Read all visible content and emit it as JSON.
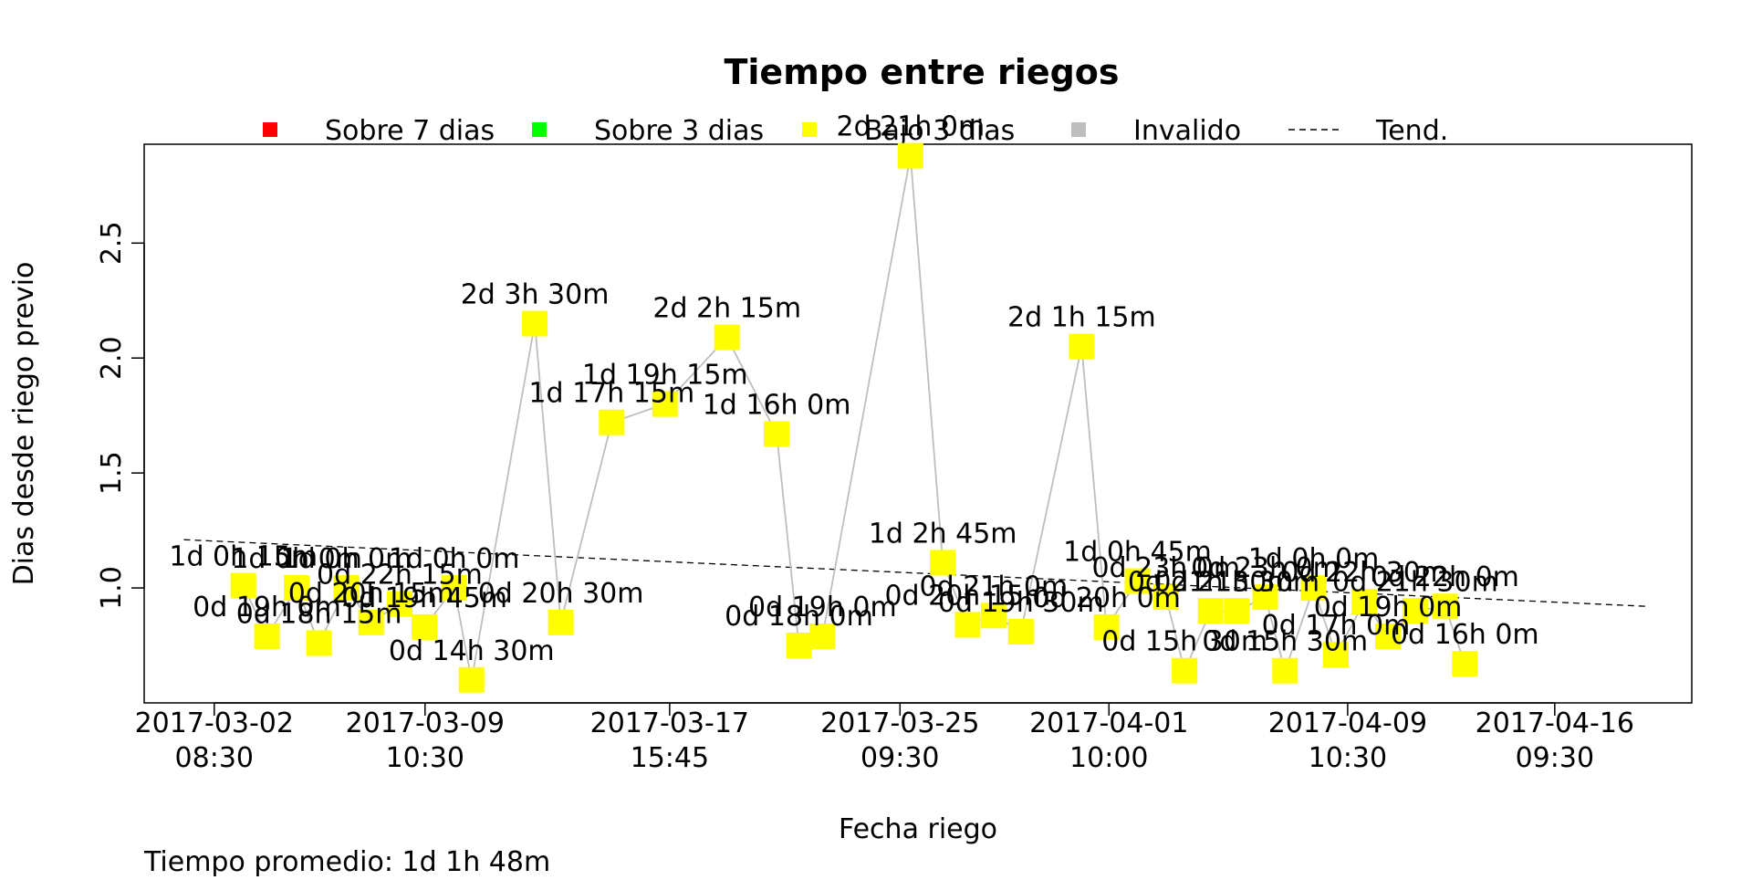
{
  "chart_data": {
    "type": "scatter",
    "title": "Tiempo entre riegos",
    "xlabel": "Fecha riego",
    "ylabel": "Dias desde riego previo",
    "footnote": "Tiempo promedio: 1d 1h 48m",
    "ylim": [
      0.5,
      2.93
    ],
    "yticks": [
      1.0,
      1.5,
      2.0,
      2.5
    ],
    "ytick_labels": [
      "1.0",
      "1.5",
      "2.0",
      "2.5"
    ],
    "xticks": [
      {
        "date": "2017-03-02 08:30",
        "line1": "2017-03-02",
        "line2": "08:30"
      },
      {
        "date": "2017-03-09 10:30",
        "line1": "2017-03-09",
        "line2": "10:30"
      },
      {
        "date": "2017-03-17 15:45",
        "line1": "2017-03-17",
        "line2": "15:45"
      },
      {
        "date": "2017-03-25 09:30",
        "line1": "2017-03-25",
        "line2": "09:30"
      },
      {
        "date": "2017-04-01 10:00",
        "line1": "2017-04-01",
        "line2": "10:00"
      },
      {
        "date": "2017-04-09 10:30",
        "line1": "2017-04-09",
        "line2": "10:30"
      },
      {
        "date": "2017-04-16 09:30",
        "line1": "2017-04-16",
        "line2": "09:30"
      }
    ],
    "xlim": [
      "2017-02-28 00:00",
      "2017-04-21 00:00"
    ],
    "legend": [
      {
        "label": "Sobre 7 dias",
        "color": "#ff0000",
        "kind": "square"
      },
      {
        "label": "Sobre 3 dias",
        "color": "#00ff00",
        "kind": "square"
      },
      {
        "label": "Bajo 3 dias",
        "color": "#ffff00",
        "kind": "square"
      },
      {
        "label": "Invalido",
        "color": "#bebebe",
        "kind": "square"
      },
      {
        "label": "Tend.",
        "color": "#000000",
        "kind": "dashed-line"
      }
    ],
    "legend_position": "top",
    "line_color": "#bebebe",
    "point_color": "#ffff00",
    "trend": {
      "x": [
        "2017-03-01 08:00",
        "2017-04-19 12:00"
      ],
      "y": [
        1.21,
        0.92
      ]
    },
    "points": [
      {
        "x": "2017-03-03 08:00",
        "y": 1.01,
        "label": "1d 0h 15m"
      },
      {
        "x": "2017-03-04 03:00",
        "y": 0.79,
        "label": "0d 19h 0m"
      },
      {
        "x": "2017-03-05 03:00",
        "y": 1.0,
        "label": "1d 0h 0m"
      },
      {
        "x": "2017-03-05 21:00",
        "y": 0.76,
        "label": "0d 18h 15m"
      },
      {
        "x": "2017-03-06 19:00",
        "y": 1.0,
        "label": "1d 0h 0m"
      },
      {
        "x": "2017-03-07 15:00",
        "y": 0.85,
        "label": "0d 20h 15m"
      },
      {
        "x": "2017-03-08 14:00",
        "y": 0.93,
        "label": "0d 22h 15m"
      },
      {
        "x": "2017-03-09 10:00",
        "y": 0.83,
        "label": "0d 19h 45m"
      },
      {
        "x": "2017-03-10 10:00",
        "y": 1.0,
        "label": "1d 0h 0m"
      },
      {
        "x": "2017-03-11 00:00",
        "y": 0.6,
        "label": "0d 14h 30m"
      },
      {
        "x": "2017-03-13 03:00",
        "y": 2.15,
        "label": "2d 3h 30m"
      },
      {
        "x": "2017-03-14 00:00",
        "y": 0.85,
        "label": "0d 20h 30m"
      },
      {
        "x": "2017-03-15 17:00",
        "y": 1.72,
        "label": "1d 17h 15m"
      },
      {
        "x": "2017-03-17 12:00",
        "y": 1.8,
        "label": "1d 19h 15m"
      },
      {
        "x": "2017-03-19 14:00",
        "y": 2.09,
        "label": "2d 2h 15m"
      },
      {
        "x": "2017-03-21 06:00",
        "y": 1.67,
        "label": "1d 16h 0m"
      },
      {
        "x": "2017-03-22 00:00",
        "y": 0.75,
        "label": "0d 18h 0m"
      },
      {
        "x": "2017-03-22 19:00",
        "y": 0.79,
        "label": "0d 19h 0m"
      },
      {
        "x": "2017-03-25 18:00",
        "y": 2.88,
        "label": "2d 21h 0m"
      },
      {
        "x": "2017-03-26 20:00",
        "y": 1.11,
        "label": "1d 2h 45m"
      },
      {
        "x": "2017-03-27 16:00",
        "y": 0.84,
        "label": "0d 20h 15m"
      },
      {
        "x": "2017-03-28 13:00",
        "y": 0.88,
        "label": "0d 21h 0m"
      },
      {
        "x": "2017-03-29 11:00",
        "y": 0.81,
        "label": "0d 19h 30m"
      },
      {
        "x": "2017-03-31 12:00",
        "y": 2.05,
        "label": "2d 1h 15m"
      },
      {
        "x": "2017-04-01 08:00",
        "y": 0.83,
        "label": "0d 20h 0m"
      },
      {
        "x": "2017-04-02 09:00",
        "y": 1.03,
        "label": "1d 0h 45m"
      },
      {
        "x": "2017-04-03 08:00",
        "y": 0.96,
        "label": "0d 23h 0m"
      },
      {
        "x": "2017-04-03 23:00",
        "y": 0.64,
        "label": "0d 15h 30m"
      },
      {
        "x": "2017-04-04 20:00",
        "y": 0.9,
        "label": "0d 21h 30m"
      },
      {
        "x": "2017-04-05 17:00",
        "y": 0.9,
        "label": "0d 21h 30m"
      },
      {
        "x": "2017-04-06 16:00",
        "y": 0.96,
        "label": "0d 23h 0m"
      },
      {
        "x": "2017-04-07 08:00",
        "y": 0.64,
        "label": "0d 15h 30m"
      },
      {
        "x": "2017-04-08 07:00",
        "y": 1.0,
        "label": "1d 0h 0m"
      },
      {
        "x": "2017-04-09 01:00",
        "y": 0.71,
        "label": "0d 17h 0m"
      },
      {
        "x": "2017-04-10 00:00",
        "y": 0.94,
        "label": "0d 22h 30m"
      },
      {
        "x": "2017-04-10 19:00",
        "y": 0.79,
        "label": "0d 19h 0m"
      },
      {
        "x": "2017-04-11 17:00",
        "y": 0.9,
        "label": "0d 21h 30m"
      },
      {
        "x": "2017-04-12 17:00",
        "y": 0.92,
        "label": "0d 22h 0m"
      },
      {
        "x": "2017-04-13 09:00",
        "y": 0.67,
        "label": "0d 16h 0m"
      }
    ]
  }
}
